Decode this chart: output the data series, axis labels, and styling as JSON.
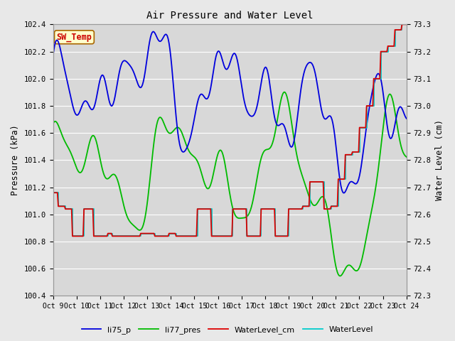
{
  "title": "Air Pressure and Water Level",
  "ylabel_left": "Pressure (kPa)",
  "ylabel_right": "Water Level (cm)",
  "annotation_text": "SW_Temp",
  "annotation_color": "#cc0000",
  "annotation_bg": "#ffffcc",
  "annotation_border": "#aa6600",
  "ylim_left": [
    100.4,
    102.4
  ],
  "ylim_right": [
    72.3,
    73.3
  ],
  "yticks_left": [
    100.4,
    100.6,
    100.8,
    101.0,
    101.2,
    101.4,
    101.6,
    101.8,
    102.0,
    102.2,
    102.4
  ],
  "yticks_right": [
    72.3,
    72.4,
    72.5,
    72.6,
    72.7,
    72.8,
    72.9,
    73.0,
    73.1,
    73.2,
    73.3
  ],
  "background_color": "#e8e8e8",
  "plot_bg": "#d8d8d8",
  "grid_color": "#ffffff",
  "line_colors": {
    "li75_p": "#0000dd",
    "li77_pres": "#00bb00",
    "WaterLevel_cm": "#dd0000",
    "WaterLevel": "#00cccc"
  },
  "line_widths": {
    "li75_p": 1.3,
    "li77_pres": 1.3,
    "WaterLevel_cm": 1.3,
    "WaterLevel": 1.3
  },
  "xtick_labels": [
    "Oct 9",
    "Oct 10",
    "Oct 11",
    "Oct 12",
    "Oct 13",
    "Oct 14",
    "Oct 15",
    "Oct 16",
    "Oct 17",
    "Oct 18",
    "Oct 19",
    "Oct 20",
    "Oct 21",
    "Oct 22",
    "Oct 23",
    "Oct 24"
  ],
  "legend_labels": [
    "li75_p",
    "li77_pres",
    "WaterLevel_cm",
    "WaterLevel"
  ]
}
